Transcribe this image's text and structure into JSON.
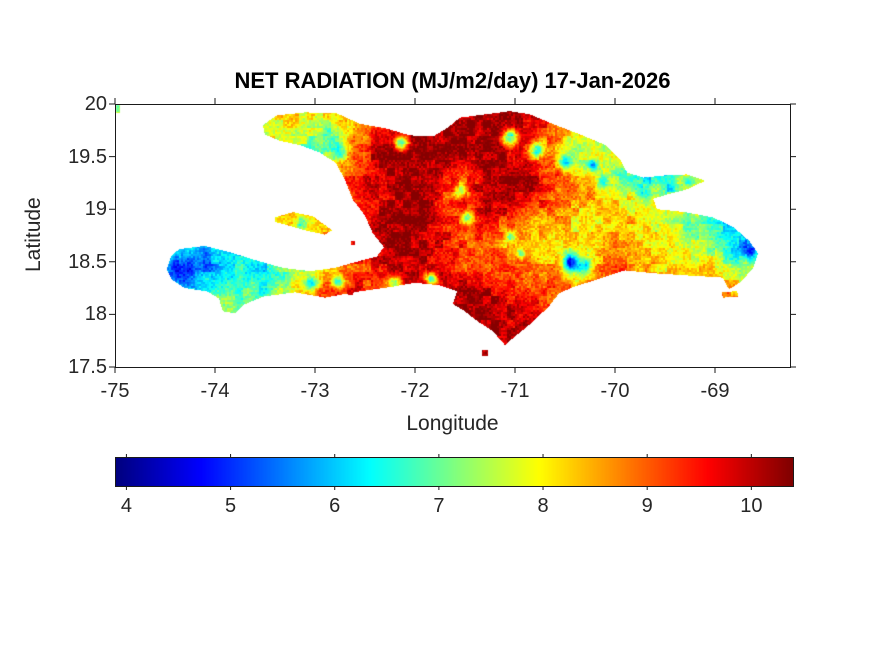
{
  "figure": {
    "background": "#ffffff",
    "axes_color": "#1a1a1a",
    "text_color": "#262626"
  },
  "chart_data": {
    "type": "heatmap",
    "title": "NET RADIATION (MJ/m2/day) 17-Jan-2026",
    "xlabel": "Longitude",
    "ylabel": "Latitude",
    "region": "Hispaniola",
    "units": "MJ/m2/day",
    "xlim": [
      -75,
      -68.25
    ],
    "ylim": [
      17.5,
      20
    ],
    "grid_lines": false,
    "x_ticks": {
      "values": [
        -75,
        -74,
        -73,
        -72,
        -71,
        -70,
        -69
      ],
      "labels": [
        "-75",
        "-74",
        "-73",
        "-72",
        "-71",
        "-70",
        "-69"
      ]
    },
    "y_ticks": {
      "values": [
        20,
        19.5,
        19,
        18.5,
        18,
        17.5
      ],
      "labels": [
        "20",
        "19.5",
        "19",
        "18.5",
        "18",
        "17.5"
      ]
    },
    "colorbar": {
      "orientation": "horizontal",
      "colormap": "jet",
      "range": [
        3.9,
        10.4
      ],
      "ticks": {
        "values": [
          4,
          5,
          6,
          7,
          8,
          9,
          10
        ],
        "labels": [
          "4",
          "5",
          "6",
          "7",
          "8",
          "9",
          "10"
        ]
      }
    },
    "value_grid": {
      "comment": "net radiation MJ/m2/day sampled on lon/lat grid, rows north to south",
      "lon0": -74.6,
      "lon1": -68.6,
      "lat_top": 19.95,
      "lat_bottom": 17.6,
      "nx": 28,
      "ny": 12,
      "values": [
        [
          7.5,
          8,
          8,
          8,
          8,
          8,
          8.2,
          8.2,
          8.4,
          8.8,
          9.2,
          9.6,
          10,
          10.1,
          10.1,
          10.2,
          10.1,
          9.6,
          9.2,
          8.6,
          8.2,
          8,
          8,
          8,
          8,
          8,
          8,
          8
        ],
        [
          7.8,
          7.8,
          7.8,
          7.8,
          7.8,
          7.8,
          8,
          7.6,
          7.0,
          8.6,
          9.4,
          10,
          10.2,
          10.2,
          10.2,
          10.2,
          10.1,
          9.8,
          8.8,
          7.8,
          7.4,
          7.2,
          7.5,
          8,
          8,
          8,
          8,
          8
        ],
        [
          8,
          8,
          8,
          8,
          8,
          8,
          7.6,
          6.6,
          7.6,
          9.0,
          10,
          10.2,
          10.3,
          10.3,
          10.3,
          10.2,
          10,
          9.4,
          8.4,
          7.2,
          7.8,
          8,
          7.6,
          7.5,
          8,
          8,
          8,
          8
        ],
        [
          8.5,
          8.5,
          8.5,
          8.5,
          8.5,
          8.5,
          8.5,
          8.5,
          8.6,
          9.4,
          10,
          10.3,
          10.3,
          9.6,
          9.2,
          10,
          10.2,
          10,
          9.2,
          8.6,
          8,
          6.8,
          6.2,
          6.6,
          7.6,
          7.5,
          7.5,
          7.5
        ],
        [
          8.5,
          8.5,
          8.5,
          8.5,
          8.5,
          8.5,
          8.5,
          8.5,
          8.8,
          9.2,
          9.6,
          10.2,
          10.3,
          9.2,
          9.5,
          10.1,
          10.2,
          9.6,
          9.0,
          8.6,
          8.5,
          8.1,
          7.6,
          7.9,
          8.0,
          7.8,
          7.6,
          7.6
        ],
        [
          7.5,
          7.5,
          7.5,
          7.6,
          7.8,
          8.0,
          8.4,
          8.1,
          8.5,
          9.4,
          10,
          10.2,
          10.2,
          9.6,
          9.0,
          9.5,
          9.0,
          8.6,
          8.5,
          8.1,
          8.1,
          8.5,
          8.1,
          7.6,
          7.1,
          6.6,
          6.2,
          6.5
        ],
        [
          7.0,
          6.6,
          6.2,
          6.5,
          7.0,
          7.5,
          8.0,
          8.5,
          9.0,
          9.6,
          10,
          10.2,
          10.1,
          9.6,
          9.1,
          9.0,
          8.3,
          8.4,
          8.1,
          8.0,
          8.5,
          8.6,
          8.1,
          8.0,
          7.6,
          7.1,
          5.9,
          6.2
        ],
        [
          6.2,
          5.2,
          5.7,
          6.1,
          6.5,
          6.2,
          7.1,
          7.6,
          8.1,
          9.0,
          9.6,
          10,
          10,
          9.6,
          9.1,
          9.1,
          9.1,
          8.6,
          8.6,
          6.4,
          8.6,
          9.0,
          8.6,
          8.1,
          8.1,
          8.1,
          7.2,
          7.6
        ],
        [
          6.6,
          5.8,
          6.1,
          6.6,
          7.0,
          6.6,
          7.6,
          8.6,
          9.1,
          9.6,
          9.1,
          9.6,
          10,
          10,
          10,
          10,
          9.6,
          9.1,
          9.1,
          9.1,
          9.1,
          9.1,
          8.6,
          8.6,
          8.6,
          8.6,
          8.6,
          8.2
        ],
        [
          7.5,
          7.3,
          7.2,
          7.5,
          7.1,
          7.6,
          8.5,
          9,
          9,
          9,
          9,
          9.3,
          9.6,
          10,
          10.2,
          10.2,
          10,
          9.5,
          9.2,
          9,
          9,
          9,
          9,
          9,
          9,
          9,
          9,
          9
        ],
        [
          9,
          9,
          9,
          9,
          9,
          9,
          9,
          9,
          9,
          9,
          9,
          9.5,
          9.8,
          10,
          10.2,
          10.2,
          10,
          9.8,
          9.5,
          9.5,
          9.5,
          9.5,
          9.5,
          9.5,
          9.5,
          9.5,
          9.5,
          9.5
        ],
        [
          10,
          10,
          10,
          10,
          10,
          10,
          10,
          10,
          10,
          10,
          10,
          10,
          10,
          10.1,
          10.2,
          10.1,
          10,
          10,
          10,
          10,
          10,
          10,
          10,
          10,
          10,
          10,
          10,
          10
        ]
      ]
    },
    "low_value_spots": [
      [
        -74.32,
        18.42,
        0.11,
        4.6
      ],
      [
        -74.1,
        18.5,
        0.1,
        5.4
      ],
      [
        -73.78,
        18.56,
        0.09,
        6.2
      ],
      [
        -73.05,
        18.3,
        0.07,
        6.2
      ],
      [
        -72.78,
        18.32,
        0.06,
        6.6
      ],
      [
        -70.44,
        18.5,
        0.07,
        4.5
      ],
      [
        -70.3,
        18.48,
        0.06,
        6.0
      ],
      [
        -68.66,
        18.62,
        0.08,
        4.9
      ],
      [
        -71.05,
        19.68,
        0.08,
        6.3
      ],
      [
        -70.78,
        19.57,
        0.08,
        6.3
      ],
      [
        -70.5,
        19.46,
        0.07,
        6.1
      ],
      [
        -70.22,
        19.42,
        0.06,
        5.9
      ],
      [
        -70.12,
        19.27,
        0.06,
        6.1
      ],
      [
        -69.7,
        19.17,
        0.06,
        6.2
      ],
      [
        -69.46,
        19.2,
        0.06,
        6.3
      ],
      [
        -69.26,
        19.25,
        0.05,
        6.6
      ],
      [
        -72.76,
        19.56,
        0.08,
        6.5
      ],
      [
        -72.14,
        19.63,
        0.07,
        6.8
      ],
      [
        -71.55,
        19.18,
        0.07,
        7.2
      ],
      [
        -71.48,
        18.93,
        0.06,
        7.0
      ],
      [
        -71.05,
        18.74,
        0.06,
        6.9
      ],
      [
        -70.94,
        18.58,
        0.05,
        7.0
      ],
      [
        -71.84,
        18.34,
        0.06,
        6.3
      ],
      [
        -72.22,
        18.3,
        0.07,
        7.0
      ],
      [
        -69.0,
        19.02,
        0.05,
        6.6
      ],
      [
        -73.15,
        18.87,
        0.06,
        6.8
      ]
    ],
    "geometry": {
      "coastline": [
        [
          -73.52,
          19.8
        ],
        [
          -73.38,
          19.89
        ],
        [
          -73.1,
          19.92
        ],
        [
          -72.78,
          19.91
        ],
        [
          -72.55,
          19.81
        ],
        [
          -72.3,
          19.77
        ],
        [
          -72.05,
          19.7
        ],
        [
          -71.82,
          19.69
        ],
        [
          -71.68,
          19.77
        ],
        [
          -71.55,
          19.87
        ],
        [
          -71.3,
          19.9
        ],
        [
          -71.05,
          19.93
        ],
        [
          -70.85,
          19.9
        ],
        [
          -70.6,
          19.8
        ],
        [
          -70.35,
          19.71
        ],
        [
          -70.1,
          19.61
        ],
        [
          -69.95,
          19.47
        ],
        [
          -69.88,
          19.35
        ],
        [
          -69.72,
          19.3
        ],
        [
          -69.5,
          19.32
        ],
        [
          -69.28,
          19.33
        ],
        [
          -69.1,
          19.27
        ],
        [
          -69.28,
          19.19
        ],
        [
          -69.48,
          19.14
        ],
        [
          -69.62,
          19.1
        ],
        [
          -69.58,
          19.0
        ],
        [
          -69.3,
          18.97
        ],
        [
          -69.02,
          18.92
        ],
        [
          -68.82,
          18.83
        ],
        [
          -68.66,
          18.7
        ],
        [
          -68.57,
          18.58
        ],
        [
          -68.62,
          18.44
        ],
        [
          -68.74,
          18.31
        ],
        [
          -68.86,
          18.24
        ],
        [
          -68.92,
          18.35
        ],
        [
          -69.25,
          18.37
        ],
        [
          -69.6,
          18.39
        ],
        [
          -69.9,
          18.42
        ],
        [
          -70.16,
          18.34
        ],
        [
          -70.42,
          18.26
        ],
        [
          -70.56,
          18.2
        ],
        [
          -70.66,
          18.08
        ],
        [
          -70.82,
          17.93
        ],
        [
          -70.99,
          17.8
        ],
        [
          -71.1,
          17.71
        ],
        [
          -71.22,
          17.84
        ],
        [
          -71.38,
          17.94
        ],
        [
          -71.5,
          18.03
        ],
        [
          -71.62,
          18.1
        ],
        [
          -71.58,
          18.22
        ],
        [
          -71.76,
          18.28
        ],
        [
          -72.0,
          18.3
        ],
        [
          -72.25,
          18.26
        ],
        [
          -72.55,
          18.22
        ],
        [
          -72.9,
          18.16
        ],
        [
          -73.2,
          18.21
        ],
        [
          -73.52,
          18.17
        ],
        [
          -73.72,
          18.09
        ],
        [
          -73.8,
          18.01
        ],
        [
          -73.92,
          18.03
        ],
        [
          -73.96,
          18.15
        ],
        [
          -74.08,
          18.22
        ],
        [
          -74.3,
          18.25
        ],
        [
          -74.43,
          18.33
        ],
        [
          -74.48,
          18.43
        ],
        [
          -74.44,
          18.55
        ],
        [
          -74.36,
          18.62
        ],
        [
          -74.1,
          18.65
        ],
        [
          -73.85,
          18.59
        ],
        [
          -73.58,
          18.51
        ],
        [
          -73.32,
          18.44
        ],
        [
          -73.05,
          18.41
        ],
        [
          -72.8,
          18.44
        ],
        [
          -72.58,
          18.5
        ],
        [
          -72.38,
          18.55
        ],
        [
          -72.31,
          18.64
        ],
        [
          -72.42,
          18.77
        ],
        [
          -72.5,
          18.94
        ],
        [
          -72.62,
          19.09
        ],
        [
          -72.7,
          19.28
        ],
        [
          -72.79,
          19.44
        ],
        [
          -72.95,
          19.54
        ],
        [
          -73.15,
          19.61
        ],
        [
          -73.35,
          19.65
        ],
        [
          -73.5,
          19.71
        ]
      ],
      "gonave_island": [
        [
          -73.4,
          18.92
        ],
        [
          -73.22,
          18.97
        ],
        [
          -73.02,
          18.93
        ],
        [
          -72.83,
          18.8
        ],
        [
          -72.9,
          18.76
        ],
        [
          -73.1,
          18.8
        ],
        [
          -73.28,
          18.85
        ],
        [
          -73.4,
          18.88
        ]
      ],
      "islets": [
        [
          [
            -74.99,
            19.99
          ],
          [
            -74.95,
            19.99
          ],
          [
            -74.95,
            19.92
          ],
          [
            -74.99,
            19.92
          ]
        ],
        [
          [
            -68.93,
            18.21
          ],
          [
            -68.78,
            18.22
          ],
          [
            -68.77,
            18.17
          ],
          [
            -68.92,
            18.16
          ]
        ],
        [
          [
            -71.33,
            17.66
          ],
          [
            -71.27,
            17.66
          ],
          [
            -71.27,
            17.61
          ],
          [
            -71.33,
            17.61
          ]
        ],
        [
          [
            -73.7,
            18.2
          ],
          [
            -73.62,
            18.2
          ],
          [
            -73.63,
            18.15
          ],
          [
            -73.7,
            18.16
          ]
        ],
        [
          [
            -72.67,
            18.23
          ],
          [
            -72.62,
            18.23
          ],
          [
            -72.62,
            18.19
          ],
          [
            -72.67,
            18.19
          ]
        ],
        [
          [
            -72.64,
            18.7
          ],
          [
            -72.6,
            18.7
          ],
          [
            -72.6,
            18.66
          ],
          [
            -72.64,
            18.66
          ]
        ]
      ]
    }
  }
}
